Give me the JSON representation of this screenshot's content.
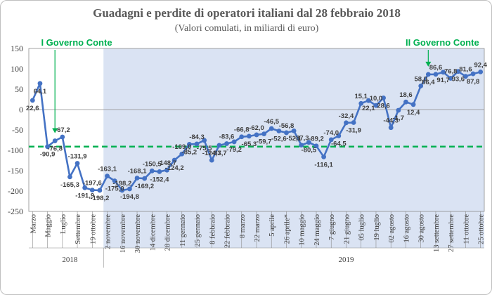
{
  "chart_data": {
    "type": "line",
    "title": "Guadagni e perdite di operatori italiani dal 28 febbraio 2018",
    "subtitle": "(Valori comulati, in miliardi di euro)",
    "ylim": [
      -250,
      150
    ],
    "yticks": [
      150,
      100,
      50,
      0,
      -50,
      -100,
      -150,
      -200,
      -250
    ],
    "reference_line": -90.9,
    "values": [
      22.6,
      64.1,
      -90.9,
      -76.8,
      -67.2,
      -165.3,
      -131.9,
      -191.9,
      -197.6,
      -198.2,
      -163.1,
      -175.0,
      -198.2,
      -194.8,
      -168.1,
      -169.2,
      -150.5,
      -152.4,
      -148.7,
      -124.2,
      -109.0,
      -85.2,
      -84.3,
      -75.5,
      -124.3,
      -87.7,
      -83.6,
      -79.2,
      -66.8,
      -65.3,
      -62.0,
      -59.7,
      -46.5,
      -52.6,
      -56.8,
      -52.1,
      -87.3,
      -80.5,
      -89.2,
      -116.1,
      -74.0,
      -64.5,
      -32.4,
      -31.9,
      15.1,
      22.1,
      10.0,
      28.6,
      -44.3,
      -1.7,
      18.6,
      12.4,
      58.0,
      86.4,
      86.6,
      91.7,
      76.8,
      93.6,
      81.6,
      87.8,
      92.4
    ],
    "labels": [
      "22,6",
      "64,1",
      "-90,9",
      "-76,8",
      "-67,2",
      "-165,3",
      "-131,9",
      "-191,9",
      "-197,6",
      "-198,2",
      "-163,1",
      "-175,0",
      "-198,2",
      "-194,8",
      "-168,1",
      "-169,2",
      "-150,5",
      "-152,4",
      "-148,7",
      "-124,2",
      "-109,0",
      "-85,2",
      "-84,3",
      "-75,5",
      "-124,3",
      "-87,7",
      "-83,6",
      "-79,2",
      "-66,8",
      "-65,3",
      "-62,0",
      "-59,7",
      "-46,5",
      "-52,6",
      "-56,8",
      "-52,1",
      "-87,3",
      "-80,5",
      "-89,2",
      "-116,1",
      "-74,0",
      "-64,5",
      "-32,4",
      "-31,9",
      "15,1",
      "22,1",
      "10,0",
      "28,6",
      "-44,3",
      "-1,7",
      "18,6",
      "12,4",
      "58,0",
      "86,4",
      "86,6",
      "91,7",
      "76,8",
      "93,6",
      "81,6",
      "87,8",
      "92,4"
    ],
    "categories": [
      {
        "label": "Marzo",
        "index": 0
      },
      {
        "label": "Maggio",
        "index": 2
      },
      {
        "label": "Luglio",
        "index": 4
      },
      {
        "label": "Settembre",
        "index": 6
      },
      {
        "label": "19 ottobre",
        "index": 8
      },
      {
        "label": "2 novembre",
        "index": 10
      },
      {
        "label": "16 novembre",
        "index": 12
      },
      {
        "label": "30 novembre",
        "index": 14
      },
      {
        "label": "14 dicembre",
        "index": 16
      },
      {
        "label": "28 dicembre",
        "index": 18
      },
      {
        "label": "11 gennaio",
        "index": 20
      },
      {
        "label": "25 gennaio",
        "index": 22
      },
      {
        "label": "8 febbraio",
        "index": 24
      },
      {
        "label": "22 febbraio",
        "index": 26
      },
      {
        "label": "8 marzo",
        "index": 28
      },
      {
        "label": "22 marzo",
        "index": 30
      },
      {
        "label": "5 aprile",
        "index": 32
      },
      {
        "label": "26 aprile*",
        "index": 34
      },
      {
        "label": "10 maggio",
        "index": 36
      },
      {
        "label": "24 maggio",
        "index": 38
      },
      {
        "label": "7 giugno",
        "index": 40
      },
      {
        "label": "21 giugno",
        "index": 42
      },
      {
        "label": "05 luglio",
        "index": 44
      },
      {
        "label": "19 luglio",
        "index": 46
      },
      {
        "label": "02 agosto",
        "index": 48
      },
      {
        "label": "16 agosto",
        "index": 50
      },
      {
        "label": "30 agosto",
        "index": 52
      },
      {
        "label": "13 settembre",
        "index": 54
      },
      {
        "label": "27 settembre",
        "index": 56
      },
      {
        "label": "11 ottobre",
        "index": 58
      },
      {
        "label": "25 ottobre",
        "index": 60
      }
    ],
    "years": [
      {
        "label": "2018",
        "index": 5
      },
      {
        "label": "2019",
        "index": 42
      }
    ],
    "shaded_from_index": 10,
    "annotations": [
      {
        "text": "I Governo Conte",
        "index": 3
      },
      {
        "text": "II Governo Conte",
        "index": 53
      }
    ],
    "colors": {
      "line": "#4472c4",
      "shade": "#dae3f3",
      "reference": "#00b050",
      "annotation": "#00b050"
    },
    "grid": false,
    "legend": "none"
  }
}
